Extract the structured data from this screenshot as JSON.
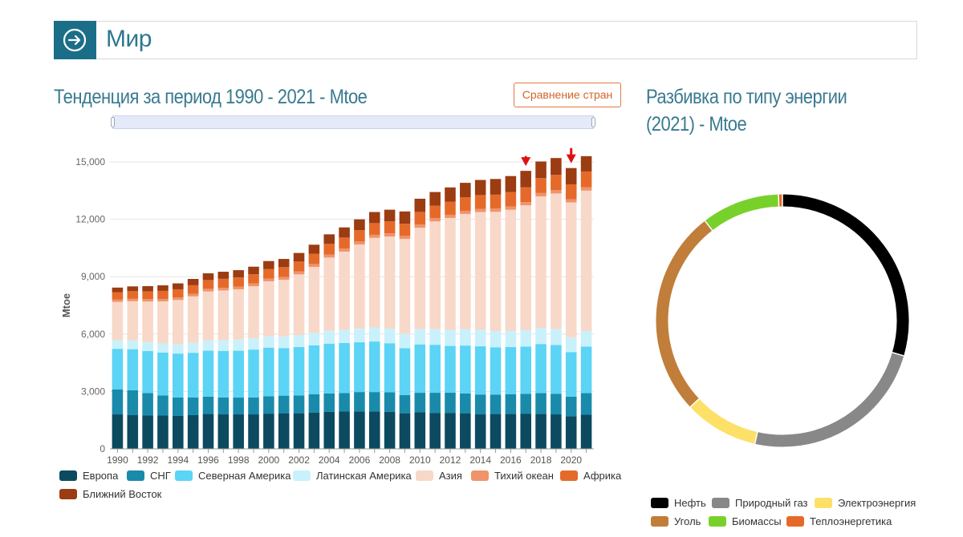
{
  "header": {
    "title": "Мир"
  },
  "trend": {
    "title": "Тенденция за период 1990 - 2021 - Mtoe",
    "compare_label": "Сравнение стран"
  },
  "breakdown": {
    "title": "Разбивка по типу энергии (2021) - Mtoe"
  },
  "chart_data": [
    {
      "type": "bar",
      "stacked": true,
      "ylabel": "Mtoe",
      "ylim": [
        0,
        15000
      ],
      "yticks": [
        "0",
        "3,000",
        "6,000",
        "9,000",
        "12,000",
        "15,000"
      ],
      "xtick_labels": [
        "1990",
        "1992",
        "1994",
        "1996",
        "1998",
        "2000",
        "2002",
        "2004",
        "2006",
        "2008",
        "2010",
        "2012",
        "2014",
        "2016",
        "2018",
        "2020"
      ],
      "categories": [
        "1990",
        "1991",
        "1992",
        "1993",
        "1994",
        "1995",
        "1996",
        "1997",
        "1998",
        "1999",
        "2000",
        "2001",
        "2002",
        "2003",
        "2004",
        "2005",
        "2006",
        "2007",
        "2008",
        "2009",
        "2010",
        "2011",
        "2012",
        "2013",
        "2014",
        "2015",
        "2016",
        "2017",
        "2018",
        "2019",
        "2020",
        "2021"
      ],
      "series": [
        {
          "name": "Европа",
          "color": "#0c4a60",
          "values": [
            1800,
            1760,
            1740,
            1740,
            1720,
            1760,
            1820,
            1800,
            1800,
            1800,
            1840,
            1860,
            1860,
            1900,
            1930,
            1950,
            1960,
            1960,
            1940,
            1860,
            1920,
            1880,
            1880,
            1860,
            1800,
            1820,
            1830,
            1840,
            1830,
            1800,
            1700,
            1780
          ]
        },
        {
          "name": "СНГ",
          "color": "#1a8aab",
          "values": [
            1300,
            1300,
            1180,
            1050,
            970,
            930,
            910,
            890,
            880,
            890,
            910,
            920,
            930,
            960,
            970,
            970,
            1010,
            1010,
            1020,
            950,
            1010,
            1050,
            1060,
            1040,
            1040,
            1010,
            1020,
            1030,
            1080,
            1080,
            1030,
            1130
          ]
        },
        {
          "name": "Северная Америка",
          "color": "#5bd4f5",
          "values": [
            2130,
            2150,
            2190,
            2240,
            2290,
            2330,
            2400,
            2430,
            2450,
            2500,
            2540,
            2490,
            2530,
            2550,
            2600,
            2610,
            2600,
            2640,
            2560,
            2450,
            2530,
            2510,
            2440,
            2500,
            2520,
            2480,
            2470,
            2480,
            2570,
            2550,
            2320,
            2440
          ]
        },
        {
          "name": "Латинская Америка",
          "color": "#c9f1fb",
          "values": [
            450,
            460,
            470,
            480,
            500,
            520,
            540,
            560,
            580,
            590,
            600,
            610,
            630,
            650,
            670,
            690,
            710,
            740,
            760,
            760,
            790,
            810,
            830,
            850,
            860,
            850,
            840,
            840,
            840,
            830,
            780,
            810
          ]
        },
        {
          "name": "Азия",
          "color": "#f8d8c9",
          "values": [
            2000,
            2050,
            2120,
            2200,
            2300,
            2430,
            2560,
            2600,
            2630,
            2720,
            2870,
            2960,
            3170,
            3450,
            3830,
            4090,
            4400,
            4680,
            4820,
            4950,
            5310,
            5640,
            5860,
            6030,
            6160,
            6230,
            6340,
            6540,
            6880,
            7090,
            7050,
            7340
          ]
        },
        {
          "name": "Тихий океан",
          "color": "#f0936a",
          "values": [
            120,
            122,
            125,
            127,
            130,
            132,
            135,
            138,
            140,
            143,
            146,
            148,
            150,
            152,
            154,
            156,
            158,
            160,
            162,
            160,
            165,
            165,
            166,
            166,
            166,
            168,
            170,
            172,
            172,
            172,
            168,
            170
          ]
        },
        {
          "name": "Африка",
          "color": "#e56a2a",
          "values": [
            390,
            400,
            410,
            420,
            430,
            450,
            460,
            470,
            480,
            490,
            500,
            510,
            520,
            540,
            560,
            580,
            600,
            610,
            630,
            640,
            660,
            660,
            690,
            700,
            720,
            730,
            750,
            770,
            780,
            800,
            780,
            830
          ]
        },
        {
          "name": "Ближний Восток",
          "color": "#9b3c12",
          "values": [
            240,
            250,
            270,
            290,
            310,
            330,
            350,
            370,
            380,
            390,
            410,
            430,
            450,
            470,
            500,
            530,
            560,
            580,
            610,
            640,
            690,
            710,
            740,
            760,
            790,
            820,
            840,
            860,
            870,
            880,
            850,
            800
          ]
        }
      ]
    },
    {
      "type": "pie",
      "variant": "donut",
      "slices": [
        {
          "name": "Нефть",
          "color": "#000000",
          "value": 29.5
        },
        {
          "name": "Природный газ",
          "color": "#888888",
          "value": 24.0
        },
        {
          "name": "Электроэнергия",
          "color": "#fde068",
          "value": 9.5
        },
        {
          "name": "Уголь",
          "color": "#c07e3a",
          "value": 26.5
        },
        {
          "name": "Биомассы",
          "color": "#78d12b",
          "value": 10.0
        },
        {
          "name": "Теплоэнергетика",
          "color": "#e56a2a",
          "value": 0.5
        }
      ]
    }
  ]
}
